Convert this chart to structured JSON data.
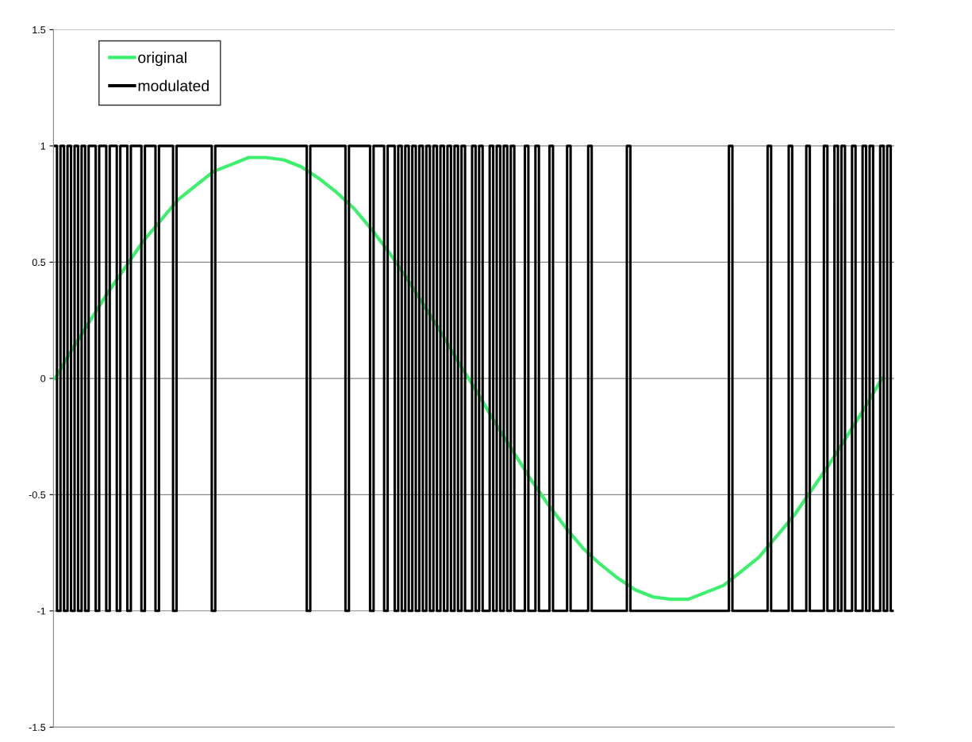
{
  "chart_data": {
    "type": "line",
    "categories": [
      null,
      null,
      null,
      null,
      null,
      null,
      null,
      null,
      null,
      null,
      null,
      null,
      null,
      null,
      null,
      null,
      null,
      null,
      null,
      null,
      null,
      null,
      null,
      null,
      null,
      null,
      null,
      null,
      null,
      null,
      null,
      null,
      null,
      null,
      null,
      null,
      null,
      null,
      null,
      null,
      null,
      null,
      null,
      null,
      null,
      null,
      null,
      null,
      null,
      null,
      null,
      null,
      null,
      null,
      null,
      null,
      null,
      null,
      null,
      null,
      null,
      null,
      null,
      null,
      null,
      null,
      null,
      null,
      null,
      null,
      null,
      null,
      null,
      null,
      null,
      null,
      null,
      null,
      null,
      null,
      null,
      null,
      null,
      null,
      null,
      null,
      null,
      null,
      null,
      null,
      null,
      null,
      null,
      null,
      null,
      null,
      null,
      null,
      null,
      null,
      null,
      null,
      null,
      null,
      null,
      null,
      null,
      null,
      null,
      null,
      null,
      null,
      null,
      null,
      null,
      null,
      null,
      null,
      null,
      null,
      null,
      null,
      null,
      null,
      null,
      null,
      null,
      null,
      null,
      null,
      null,
      null,
      null,
      null,
      null,
      null,
      null,
      null,
      null,
      null,
      null,
      null,
      null,
      null,
      null,
      null,
      null,
      null,
      null,
      null,
      null,
      null,
      null,
      null,
      null,
      null,
      null,
      null,
      null,
      null,
      null,
      null,
      null,
      null,
      null,
      null,
      null,
      null,
      null,
      null,
      null,
      null,
      null,
      null,
      null,
      null,
      null,
      null,
      null,
      null,
      null,
      null,
      null,
      null,
      null,
      null,
      null,
      null,
      null,
      null,
      null,
      null,
      null,
      null,
      null,
      null,
      null,
      null,
      null,
      null,
      null,
      null,
      null,
      null,
      null,
      null,
      null,
      null,
      null,
      null,
      null,
      null,
      null,
      null,
      null,
      null,
      null,
      null,
      null,
      null,
      null,
      null,
      null,
      null,
      null,
      null,
      null,
      null,
      null,
      null,
      null,
      null,
      null,
      null,
      null,
      null,
      null,
      null,
      null
    ],
    "series": [
      {
        "name": "original",
        "color": "#3cf06e",
        "values": [
          0,
          null,
          null,
          null,
          null,
          0.13,
          null,
          null,
          null,
          null,
          0.25,
          null,
          null,
          null,
          null,
          0.37,
          null,
          null,
          null,
          null,
          0.48,
          null,
          null,
          null,
          null,
          0.59,
          null,
          null,
          null,
          null,
          0.68,
          null,
          null,
          null,
          null,
          0.77,
          null,
          null,
          null,
          null,
          0.83,
          null,
          null,
          null,
          null,
          0.89,
          null,
          null,
          null,
          null,
          0.92,
          null,
          null,
          null,
          null,
          0.95,
          null,
          null,
          null,
          null,
          0.95,
          null,
          null,
          null,
          null,
          0.94,
          null,
          null,
          null,
          null,
          0.91,
          null,
          null,
          null,
          null,
          0.86,
          null,
          null,
          null,
          null,
          0.8,
          null,
          null,
          null,
          null,
          0.73,
          null,
          null,
          null,
          null,
          0.64,
          null,
          null,
          null,
          null,
          0.54,
          null,
          null,
          null,
          null,
          0.43,
          null,
          null,
          null,
          null,
          0.31,
          null,
          null,
          null,
          null,
          0.19,
          null,
          null,
          null,
          null,
          0.06,
          null,
          null,
          null,
          null,
          -0.06,
          null,
          null,
          null,
          null,
          -0.19,
          null,
          null,
          null,
          null,
          -0.31,
          null,
          null,
          null,
          null,
          -0.43,
          null,
          null,
          null,
          null,
          -0.54,
          null,
          null,
          null,
          null,
          -0.64,
          null,
          null,
          null,
          null,
          -0.73,
          null,
          null,
          null,
          null,
          -0.8,
          null,
          null,
          null,
          null,
          -0.86,
          null,
          null,
          null,
          null,
          -0.91,
          null,
          null,
          null,
          null,
          -0.94,
          null,
          null,
          null,
          null,
          -0.95,
          null,
          null,
          null,
          null,
          -0.95,
          null,
          null,
          null,
          null,
          -0.92,
          null,
          null,
          null,
          null,
          -0.89,
          null,
          null,
          null,
          null,
          -0.83,
          null,
          null,
          null,
          null,
          -0.77,
          null,
          null,
          null,
          null,
          -0.68,
          null,
          null,
          null,
          null,
          -0.59,
          null,
          null,
          null,
          null,
          -0.48,
          null,
          null,
          null,
          null,
          -0.37,
          null,
          null,
          null,
          null,
          -0.25,
          null,
          null,
          null,
          null,
          -0.13,
          null,
          null,
          null,
          null,
          0,
          null,
          null,
          null
        ]
      },
      {
        "name": "modulated",
        "type": "step",
        "color": "#000000",
        "values": [
          1,
          -1,
          1,
          -1,
          1,
          -1,
          1,
          -1,
          1,
          -1,
          1,
          1,
          -1,
          1,
          1,
          -1,
          1,
          1,
          -1,
          1,
          1,
          -1,
          1,
          1,
          1,
          -1,
          1,
          1,
          1,
          -1,
          1,
          1,
          1,
          1,
          -1,
          1,
          1,
          1,
          1,
          1,
          1,
          1,
          1,
          1,
          1,
          -1,
          1,
          1,
          1,
          1,
          1,
          1,
          1,
          1,
          1,
          1,
          1,
          1,
          1,
          1,
          1,
          1,
          1,
          1,
          1,
          1,
          1,
          1,
          1,
          1,
          1,
          1,
          -1,
          1,
          1,
          1,
          1,
          1,
          1,
          1,
          1,
          1,
          1,
          -1,
          1,
          1,
          1,
          1,
          1,
          1,
          -1,
          1,
          1,
          1,
          -1,
          1,
          1,
          -1,
          1,
          -1,
          1,
          -1,
          1,
          -1,
          1,
          -1,
          1,
          -1,
          1,
          -1,
          1,
          -1,
          1,
          -1,
          1,
          -1,
          1,
          -1,
          -1,
          1,
          -1,
          1,
          -1,
          -1,
          1,
          -1,
          1,
          -1,
          1,
          -1,
          1,
          -1,
          -1,
          -1,
          1,
          -1,
          -1,
          1,
          -1,
          -1,
          -1,
          1,
          -1,
          -1,
          -1,
          -1,
          1,
          -1,
          -1,
          -1,
          -1,
          -1,
          1,
          -1,
          -1,
          -1,
          -1,
          -1,
          -1,
          -1,
          -1,
          -1,
          -1,
          1,
          -1,
          -1,
          -1,
          -1,
          -1,
          -1,
          -1,
          -1,
          -1,
          -1,
          -1,
          -1,
          -1,
          -1,
          -1,
          -1,
          -1,
          -1,
          -1,
          -1,
          -1,
          -1,
          -1,
          -1,
          -1,
          -1,
          -1,
          -1,
          1,
          -1,
          -1,
          -1,
          -1,
          -1,
          -1,
          -1,
          -1,
          -1,
          -1,
          1,
          -1,
          -1,
          -1,
          -1,
          -1,
          1,
          -1,
          -1,
          -1,
          -1,
          1,
          -1,
          -1,
          -1,
          -1,
          1,
          -1,
          -1,
          1,
          -1,
          1,
          -1,
          -1,
          1,
          -1,
          -1,
          1,
          -1,
          1,
          -1,
          -1,
          1,
          -1,
          1,
          -1
        ]
      }
    ],
    "ylim": [
      -1.5,
      1.5
    ],
    "yticks": [
      -1.5,
      -1,
      -0.5,
      0,
      0.5,
      1,
      1.5
    ],
    "grid": "y",
    "legend": "top left",
    "line_style": "solid",
    "marker": "none"
  }
}
